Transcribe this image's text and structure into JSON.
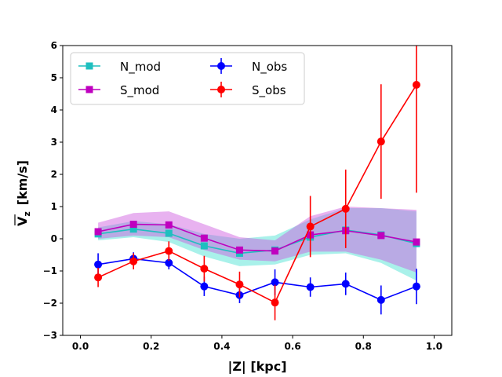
{
  "chart_data": {
    "type": "line",
    "title": "",
    "xlabel": "|Z| [kpc]",
    "ylabel": "V_z [km/s]",
    "ylabel_parts": {
      "symbol": "V",
      "subscript": "z",
      "unit": "[km/s]"
    },
    "xlim": [
      -0.05,
      1.05
    ],
    "ylim": [
      -3,
      6
    ],
    "xticks": [
      0.0,
      0.2,
      0.4,
      0.6,
      0.8,
      1.0
    ],
    "xtick_labels": [
      "0.0",
      "0.2",
      "0.4",
      "0.6",
      "0.8",
      "1.0"
    ],
    "yticks": [
      -3,
      -2,
      -1,
      0,
      1,
      2,
      3,
      4,
      5,
      6
    ],
    "ytick_labels": [
      "−3",
      "−2",
      "−1",
      "0",
      "1",
      "2",
      "3",
      "4",
      "5",
      "6"
    ],
    "grid": false,
    "legend_position": "top-left",
    "x": [
      0.05,
      0.15,
      0.25,
      0.35,
      0.45,
      0.55,
      0.65,
      0.75,
      0.85,
      0.95
    ],
    "series": [
      {
        "name": "N_mod",
        "kind": "model",
        "color": "#1fbfbf",
        "marker": "square",
        "values": [
          0.15,
          0.3,
          0.17,
          -0.22,
          -0.45,
          -0.35,
          0.05,
          0.27,
          0.12,
          -0.15
        ],
        "band_lower": [
          -0.05,
          0.05,
          -0.1,
          -0.55,
          -0.85,
          -0.8,
          -0.5,
          -0.45,
          -0.75,
          -1.3
        ],
        "band_upper": [
          0.35,
          0.55,
          0.45,
          0.15,
          0.0,
          0.1,
          0.6,
          0.95,
          0.95,
          0.85
        ],
        "band_color": "#40e0d0"
      },
      {
        "name": "S_mod",
        "kind": "model",
        "color": "#bf00bf",
        "marker": "square",
        "values": [
          0.22,
          0.45,
          0.43,
          0.02,
          -0.35,
          -0.38,
          0.12,
          0.25,
          0.1,
          -0.1
        ],
        "band_lower": [
          0.0,
          0.1,
          0.05,
          -0.35,
          -0.65,
          -0.7,
          -0.4,
          -0.4,
          -0.65,
          -1.05
        ],
        "band_upper": [
          0.5,
          0.8,
          0.85,
          0.45,
          0.05,
          -0.05,
          0.7,
          1.0,
          0.95,
          0.9
        ],
        "band_color": "#cc55dd"
      },
      {
        "name": "N_obs",
        "kind": "observed",
        "color": "#0000ff",
        "marker": "circle",
        "values": [
          -0.8,
          -0.62,
          -0.75,
          -1.48,
          -1.75,
          -1.35,
          -1.5,
          -1.4,
          -1.9,
          -1.48
        ],
        "errors": [
          0.35,
          0.2,
          0.2,
          0.3,
          0.25,
          0.4,
          0.3,
          0.35,
          0.45,
          0.55
        ]
      },
      {
        "name": "S_obs",
        "kind": "observed",
        "color": "#ff0000",
        "marker": "circle",
        "values": [
          -1.2,
          -0.7,
          -0.38,
          -0.93,
          -1.42,
          -1.98,
          0.38,
          0.93,
          3.02,
          4.78
        ],
        "errors": [
          0.3,
          0.25,
          0.3,
          0.4,
          0.4,
          0.55,
          0.95,
          1.22,
          1.78,
          3.35
        ]
      }
    ],
    "legend_entries": [
      "N_mod",
      "S_mod",
      "N_obs",
      "S_obs"
    ]
  }
}
